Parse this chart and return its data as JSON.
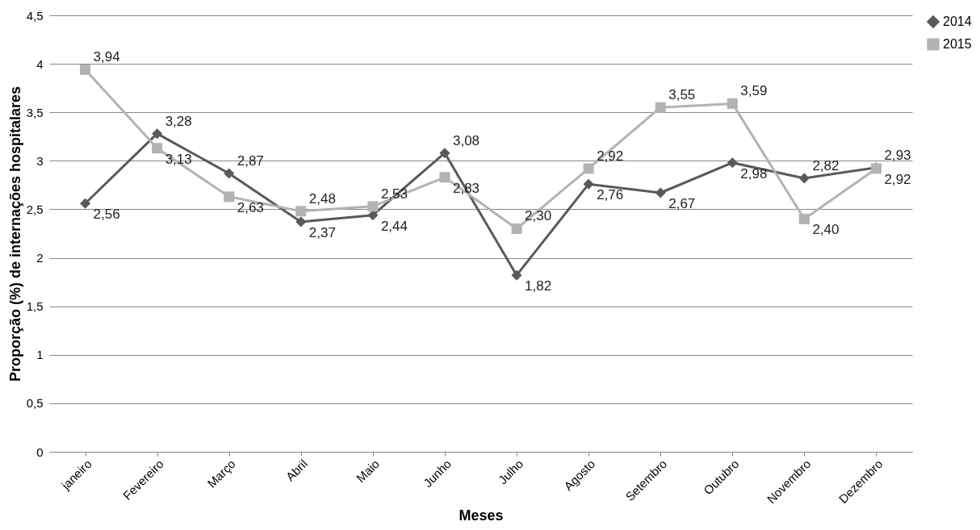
{
  "chart_data": {
    "type": "line",
    "xlabel": "Meses",
    "ylabel": "Proporção (%) de internações hospitalares",
    "categories": [
      "janeiro",
      "Fevereiro",
      "Março",
      "Abril",
      "Maio",
      "Junho",
      "Julho",
      "Agosto",
      "Setembro",
      "Outubro",
      "Novembro",
      "Dezembro"
    ],
    "series": [
      {
        "name": "2014",
        "color": "#595959",
        "marker": "diamond",
        "values": [
          2.56,
          3.28,
          2.87,
          2.37,
          2.44,
          3.08,
          1.82,
          2.76,
          2.67,
          2.98,
          2.82,
          2.93
        ],
        "value_labels": [
          "2,56",
          "3,28",
          "2,87",
          "2,37",
          "2,44",
          "3,08",
          "1,82",
          "2,76",
          "2,67",
          "2,98",
          "2,82",
          "2,93"
        ]
      },
      {
        "name": "2015",
        "color": "#b3b3b3",
        "marker": "square",
        "values": [
          3.94,
          3.13,
          2.63,
          2.48,
          2.53,
          2.83,
          2.3,
          2.92,
          3.55,
          3.59,
          2.4,
          2.92
        ],
        "value_labels": [
          "3,94",
          "3,13",
          "2,63",
          "2,48",
          "2,53",
          "2,83",
          "2,30",
          "2,92",
          "3,55",
          "3,59",
          "2,40",
          "2,92"
        ]
      }
    ],
    "ylim": [
      0,
      4.5
    ],
    "yticks": [
      0,
      {
        "value": 0.5,
        "label": "0,5"
      },
      1,
      {
        "value": 1.5,
        "label": "1,5"
      },
      2,
      {
        "value": 2.5,
        "label": "2,5"
      },
      3,
      {
        "value": 3.5,
        "label": "3,5"
      },
      4,
      {
        "value": 4.5,
        "label": "4,5"
      }
    ],
    "grid": "y",
    "legend": "right",
    "line_style": "solid"
  }
}
